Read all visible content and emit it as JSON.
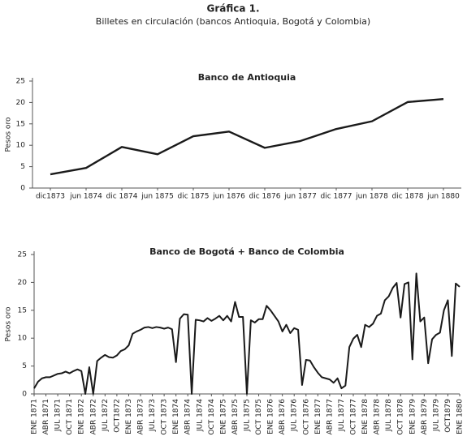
{
  "title": "Gráfica 1.",
  "subtitle": "Billetes en circulación (bancos Antioquia, Bogotá y Colombia)",
  "chart_data": [
    {
      "type": "line",
      "title": "Banco de Antioquia",
      "y_label": "Pesos oro",
      "color": "#1a1a1a",
      "categories": [
        "dic1873",
        "jun 1874",
        "dic 1874",
        "jun 1875",
        "dic 1875",
        "jun 1876",
        "dic 1876",
        "jun 1877",
        "dic 1877",
        "jun 1878",
        "dic 1878",
        "jun 1880"
      ],
      "values": [
        3.2,
        4.7,
        9.6,
        7.9,
        12.1,
        13.2,
        9.4,
        11.0,
        13.8,
        15.6,
        20.1,
        20.8
      ],
      "ylim": [
        0,
        25
      ],
      "yticks": [
        0,
        5,
        10,
        15,
        20,
        25
      ]
    },
    {
      "type": "line",
      "title": "Banco de Bogotá + Banco de Colombia",
      "y_label": "Pesos oro",
      "color": "#1a1a1a",
      "categories": [
        "ENE 1871",
        null,
        null,
        "ABR 1871",
        null,
        null,
        "JUL 1871",
        null,
        null,
        "OCT 1871",
        null,
        null,
        "ENE 1872",
        null,
        null,
        "ABR 1872",
        null,
        null,
        "JUL 1872",
        null,
        null,
        "OCT1872",
        null,
        null,
        "ENE 1873",
        null,
        null,
        "ABR 1873",
        null,
        null,
        "JUL 1873",
        null,
        null,
        "OCT 1873",
        null,
        null,
        "ENE 1874",
        null,
        null,
        "ABR 1874",
        null,
        null,
        "JUL 1874",
        null,
        null,
        "OCT 1874",
        null,
        null,
        "ENE 1875",
        null,
        null,
        "ABR 1875",
        null,
        null,
        "JUL 1875",
        null,
        null,
        "OCT 1875",
        null,
        null,
        "ENE 1876",
        null,
        null,
        "ABR 1876",
        null,
        null,
        "JUL 1876",
        null,
        null,
        "OCT 1876",
        null,
        null,
        "ENE 1877",
        null,
        null,
        "ABR 1877",
        null,
        null,
        "JUL 1877",
        null,
        null,
        "OCT 1877",
        null,
        null,
        "ENE 1878",
        null,
        null,
        "ABR 1878",
        null,
        null,
        "JUL 1878",
        null,
        null,
        "OCT 1878",
        null,
        null,
        "ENE 1879",
        null,
        null,
        "ABR 1879",
        null,
        null,
        "JUL 1879",
        null,
        null,
        "OCT1879",
        null,
        null,
        "ENE 1880"
      ],
      "values": [
        1.0,
        2.2,
        2.8,
        3.0,
        3.0,
        3.3,
        3.6,
        3.7,
        4.0,
        3.7,
        4.1,
        4.4,
        4.1,
        0.0,
        4.8,
        0.0,
        5.9,
        6.5,
        7.0,
        6.6,
        6.5,
        6.9,
        7.7,
        8.0,
        8.7,
        10.8,
        11.2,
        11.5,
        11.9,
        12.0,
        11.8,
        12.0,
        11.9,
        11.7,
        11.9,
        11.6,
        5.7,
        13.5,
        14.3,
        14.2,
        0.0,
        13.3,
        13.2,
        13.0,
        13.6,
        13.1,
        13.5,
        14.0,
        13.2,
        14.0,
        13.0,
        16.5,
        13.8,
        13.8,
        0.0,
        13.2,
        12.8,
        13.4,
        13.4,
        15.8,
        15.0,
        14.0,
        13.0,
        11.2,
        12.4,
        10.9,
        11.8,
        11.5,
        1.6,
        6.1,
        6.0,
        4.8,
        3.8,
        3.0,
        2.8,
        2.6,
        2.0,
        2.8,
        1.0,
        1.5,
        8.4,
        9.9,
        10.6,
        8.4,
        12.4,
        12.0,
        12.6,
        14.0,
        14.4,
        16.8,
        17.5,
        19.0,
        19.9,
        13.7,
        19.7,
        20.0,
        6.2,
        21.6,
        13.0,
        13.7,
        5.5,
        9.8,
        10.6,
        11.0,
        15.0,
        16.8,
        6.8,
        19.8,
        19.2
      ],
      "ylim": [
        0,
        25
      ],
      "yticks": [
        0,
        5,
        10,
        15,
        20,
        25
      ]
    }
  ]
}
